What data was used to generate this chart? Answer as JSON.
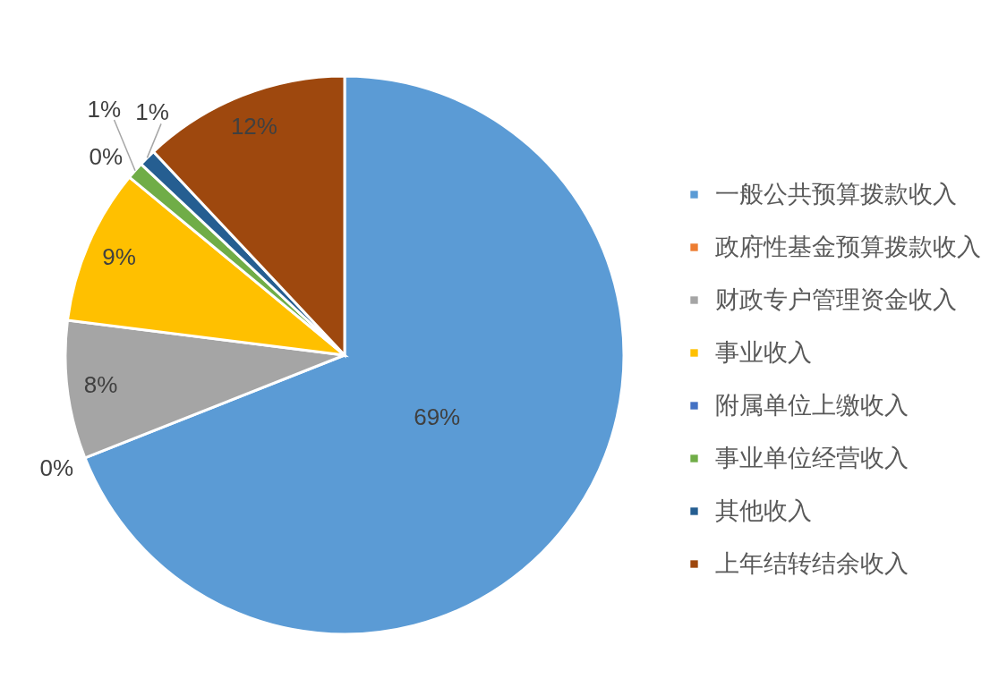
{
  "chart_data": {
    "type": "pie",
    "categories": [
      "一般公共预算拨款收入",
      "政府性基金预算拨款收入",
      "财政专户管理资金收入",
      "事业收入",
      "附属单位上缴收入",
      "事业单位经营收入",
      "其他收入",
      "上年结转结余收入"
    ],
    "values": [
      69,
      0,
      8,
      9,
      0,
      1,
      1,
      12
    ],
    "colors": [
      "#5b9bd5",
      "#ed7d31",
      "#a5a5a5",
      "#ffc000",
      "#4472c4",
      "#70ad47",
      "#255e91",
      "#9e480e"
    ],
    "value_labels": [
      "69%",
      "0%",
      "8%",
      "9%",
      "0%",
      "1%",
      "1%",
      "12%"
    ],
    "legend": "right"
  }
}
